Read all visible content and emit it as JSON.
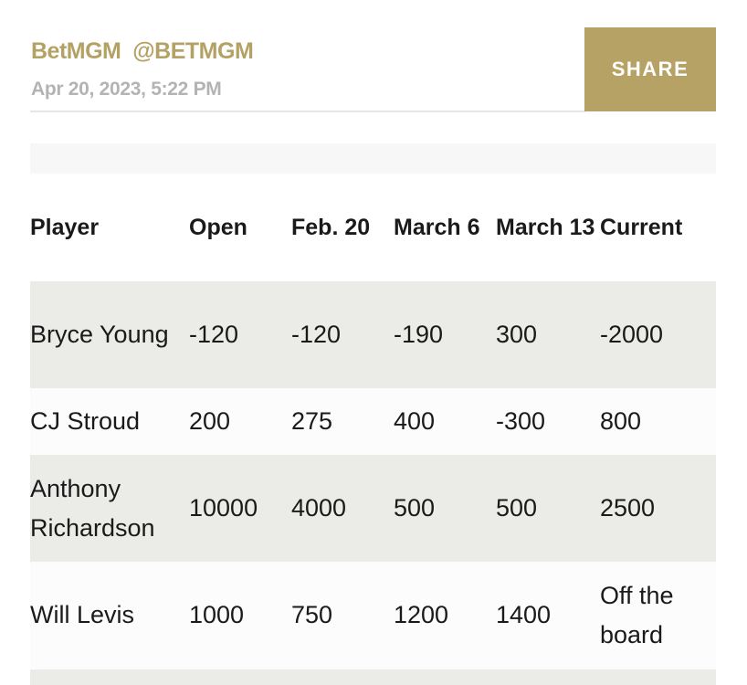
{
  "post": {
    "author": "BetMGM",
    "handle": "@BETMGM",
    "date": "Apr 20, 2023, 5:22 PM",
    "share_label": "SHARE",
    "accent": "#b6a264"
  },
  "table": {
    "headers": [
      "Player",
      "Open",
      "Feb. 20",
      "March 6",
      "March 13",
      "Current"
    ],
    "rows": [
      [
        "Bryce Young",
        "-120",
        "-120",
        "-190",
        "300",
        "-2000"
      ],
      [
        "CJ Stroud",
        "200",
        "275",
        "400",
        "-300",
        "800"
      ],
      [
        "Anthony Richardson",
        "10000",
        "4000",
        "500",
        "500",
        "2500"
      ],
      [
        "Will Levis",
        "1000",
        "750",
        "1200",
        "1400",
        "Off the board"
      ]
    ]
  }
}
